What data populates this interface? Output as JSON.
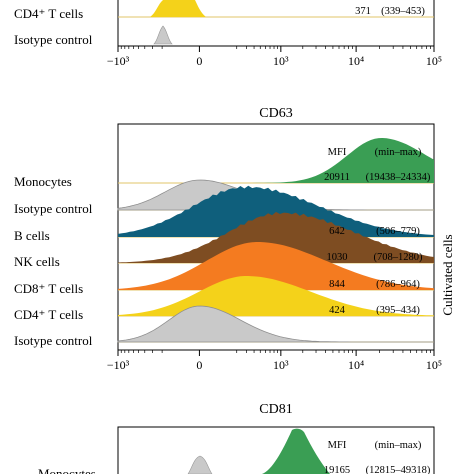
{
  "colors": {
    "monocytes": "#3a9e54",
    "b_cells": "#0f5f7c",
    "nk_cells": "#7e4d22",
    "cd8": "#f47b20",
    "cd4": "#f4d21a",
    "isotype": "#c9c9c9",
    "baseline": "#e2c46a"
  },
  "top_partial": {
    "rows": [
      {
        "label": "CD4⁺ T cells",
        "mfi": "371",
        "range": "(339–453)"
      },
      {
        "label": "Isotype control"
      }
    ],
    "x_ticks": [
      "−10³",
      "0",
      "10³",
      "10⁴",
      "10⁵"
    ]
  },
  "side_label": "Cultivated cells",
  "bottom_partial": {
    "title": "CD81",
    "mfi_header": "MFI",
    "range_header": "(min–max)",
    "first_row": {
      "label": "Monocytes",
      "mfi": "19165",
      "range": "(12815–49318)"
    }
  },
  "chart_data": [
    {
      "type": "area",
      "title": "CD63",
      "xscale": "biexponential",
      "x_ticks": [
        "−10³",
        "0",
        "10³",
        "10⁴",
        "10⁵"
      ],
      "tick_values": [
        -1000,
        0,
        1000,
        10000,
        100000
      ],
      "columns": [
        "MFI",
        "(min–max)"
      ],
      "series": [
        {
          "name": "Monocytes",
          "mfi": "20911",
          "range": "(19438–24334)",
          "color_key": "monocytes",
          "mode": 20911,
          "spread": 0.5
        },
        {
          "name": "Isotype control",
          "color_key": "isotype",
          "mode": 0,
          "spread": 0.5
        },
        {
          "name": "B cells",
          "mfi": "642",
          "range": "(506–779)",
          "color_key": "b_cells",
          "mode": 300,
          "spread": 0.8
        },
        {
          "name": "NK cells",
          "mfi": "1030",
          "range": "(708–1280)",
          "color_key": "nk_cells",
          "mode": 1030,
          "spread": 0.8
        },
        {
          "name": "CD8⁺ T cells",
          "mfi": "844",
          "range": "(786–964)",
          "color_key": "cd8",
          "mode": 450,
          "spread": 0.75
        },
        {
          "name": "CD4⁺ T cells",
          "mfi": "424",
          "range": "(395–434)",
          "color_key": "cd4",
          "mode": 300,
          "spread": 0.7
        },
        {
          "name": "Isotype control",
          "color_key": "isotype",
          "mode": 0,
          "spread": 0.45
        }
      ]
    }
  ]
}
